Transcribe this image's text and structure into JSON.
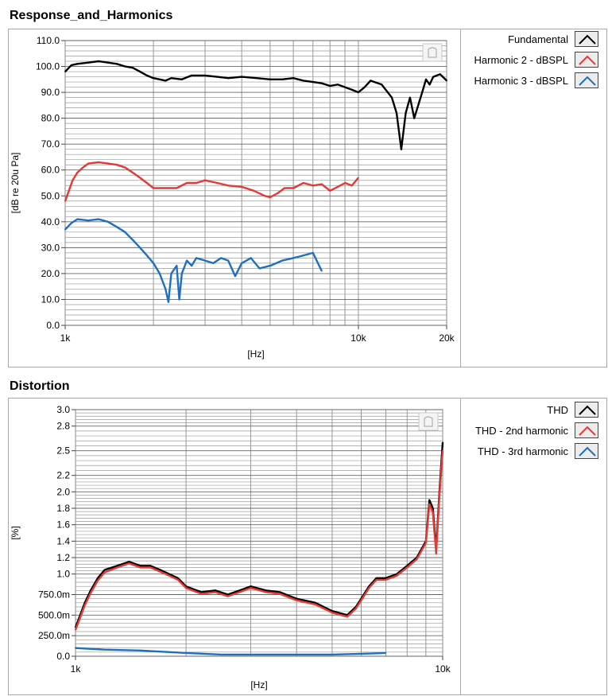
{
  "charts": {
    "response": {
      "panel_title": "Response_and_Harmonics",
      "chart_data": {
        "type": "line",
        "xscale": "log",
        "xlim": [
          1000,
          20000
        ],
        "ylim": [
          0,
          110
        ],
        "xlabel": "[Hz]",
        "ylabel": "[dB re 20u Pa]",
        "xticks": [
          1000,
          10000,
          20000
        ],
        "xtick_labels": [
          "1k",
          "10k",
          "20k"
        ],
        "yticks": [
          0,
          10,
          20,
          30,
          40,
          50,
          60,
          70,
          80,
          90,
          100,
          110
        ],
        "ytick_labels": [
          "0.0",
          "10.0",
          "20.0",
          "30.0",
          "40.0",
          "50.0",
          "60.0",
          "70.0",
          "80.0",
          "90.0",
          "100.0",
          "110.0"
        ],
        "grid": true,
        "legend_position": "right",
        "series": [
          {
            "name": "Fundamental",
            "color": "#000000",
            "x": [
              1000,
              1050,
              1100,
              1200,
              1300,
              1400,
              1500,
              1600,
              1700,
              1800,
              1900,
              2000,
              2100,
              2200,
              2300,
              2500,
              2700,
              3000,
              3300,
              3600,
              4000,
              4500,
              5000,
              5500,
              6000,
              6500,
              7000,
              7500,
              8000,
              8500,
              9000,
              9500,
              10000,
              10500,
              11000,
              12000,
              13000,
              13500,
              14000,
              14500,
              15000,
              15500,
              16000,
              16500,
              17000,
              17500,
              18000,
              19000,
              20000
            ],
            "y": [
              98,
              100.5,
              101,
              101.5,
              102,
              101.5,
              101,
              100,
              99.5,
              98,
              96.5,
              95.5,
              95,
              94.5,
              95.5,
              95,
              96.5,
              96.5,
              96,
              95.5,
              96,
              95.5,
              95,
              95,
              95.5,
              94.5,
              94,
              93.5,
              92.5,
              93,
              92,
              91,
              90,
              92,
              94.5,
              93,
              88,
              82,
              68,
              82,
              88,
              80,
              85,
              90,
              95,
              93,
              96,
              97,
              94.5
            ]
          },
          {
            "name": "Harmonic 2 - dBSPL",
            "color": "#e53935",
            "x": [
              1000,
              1030,
              1060,
              1100,
              1150,
              1200,
              1300,
              1400,
              1500,
              1600,
              1700,
              1800,
              1900,
              2000,
              2200,
              2400,
              2600,
              2800,
              3000,
              3300,
              3600,
              4000,
              4400,
              4800,
              5000,
              5300,
              5600,
              6000,
              6500,
              7000,
              7500,
              8000,
              8500,
              9000,
              9500,
              10000
            ],
            "y": [
              48,
              52,
              56,
              59,
              61,
              62.5,
              63,
              62.5,
              62,
              61,
              59,
              57,
              55,
              53,
              53,
              53,
              55,
              55,
              56,
              55,
              54,
              53.5,
              52,
              50,
              49.5,
              51,
              53,
              53,
              55,
              54,
              54.5,
              52,
              53.5,
              55,
              54,
              57
            ]
          },
          {
            "name": "Harmonic 3 - dBSPL",
            "color": "#1e6fc0",
            "x": [
              1000,
              1050,
              1100,
              1200,
              1300,
              1400,
              1500,
              1600,
              1700,
              1800,
              1900,
              2000,
              2100,
              2200,
              2250,
              2300,
              2400,
              2450,
              2500,
              2600,
              2700,
              2800,
              3000,
              3200,
              3400,
              3600,
              3800,
              4000,
              4300,
              4600,
              5000,
              5500,
              6000,
              6500,
              7000,
              7500
            ],
            "y": [
              37,
              39.5,
              41,
              40.5,
              41,
              40,
              38,
              36,
              33,
              30,
              27,
              24,
              20,
              14,
              9,
              20,
              23,
              10,
              20,
              25,
              23,
              26,
              25,
              24,
              26,
              25,
              19,
              24,
              26,
              22,
              23,
              25,
              26,
              27,
              28,
              21
            ]
          }
        ]
      }
    },
    "distortion": {
      "panel_title": "Distortion",
      "chart_data": {
        "type": "line",
        "xscale": "log",
        "xlim": [
          1000,
          10000
        ],
        "ylim": [
          0,
          3.0
        ],
        "xlabel": "[Hz]",
        "ylabel": "[%]",
        "xticks": [
          1000,
          10000
        ],
        "xtick_labels": [
          "1k",
          "10k"
        ],
        "yticks": [
          0,
          0.25,
          0.5,
          0.75,
          1.0,
          1.2,
          1.4,
          1.6,
          1.8,
          2.0,
          2.2,
          2.5,
          2.8,
          3.0
        ],
        "ytick_labels": [
          "0.0",
          "250.0m",
          "500.0m",
          "750.0m",
          "1.0",
          "1.2",
          "1.4",
          "1.6",
          "1.8",
          "2.0",
          "2.2",
          "2.5",
          "2.8",
          "3.0"
        ],
        "grid": true,
        "legend_position": "right",
        "series": [
          {
            "name": "THD",
            "color": "#000000",
            "x": [
              1000,
              1030,
              1060,
              1100,
              1150,
              1200,
              1300,
              1400,
              1500,
              1600,
              1700,
              1800,
              1900,
              2000,
              2200,
              2400,
              2600,
              2800,
              3000,
              3300,
              3600,
              4000,
              4500,
              5000,
              5500,
              5800,
              6000,
              6300,
              6600,
              7000,
              7500,
              8000,
              8500,
              9000,
              9200,
              9400,
              9600,
              9800,
              10000
            ],
            "y": [
              0.35,
              0.5,
              0.65,
              0.8,
              0.95,
              1.05,
              1.1,
              1.15,
              1.1,
              1.1,
              1.05,
              1.0,
              0.95,
              0.85,
              0.78,
              0.8,
              0.75,
              0.8,
              0.85,
              0.8,
              0.78,
              0.7,
              0.65,
              0.55,
              0.5,
              0.6,
              0.7,
              0.85,
              0.95,
              0.95,
              1.0,
              1.1,
              1.2,
              1.4,
              1.9,
              1.8,
              1.3,
              2.0,
              2.6
            ]
          },
          {
            "name": "THD - 2nd harmonic",
            "color": "#e53935",
            "x": [
              1000,
              1030,
              1060,
              1100,
              1150,
              1200,
              1300,
              1400,
              1500,
              1600,
              1700,
              1800,
              1900,
              2000,
              2200,
              2400,
              2600,
              2800,
              3000,
              3300,
              3600,
              4000,
              4500,
              5000,
              5500,
              5800,
              6000,
              6300,
              6600,
              7000,
              7500,
              8000,
              8500,
              9000,
              9200,
              9400,
              9600,
              9800,
              10000
            ],
            "y": [
              0.32,
              0.47,
              0.62,
              0.77,
              0.92,
              1.02,
              1.08,
              1.13,
              1.08,
              1.08,
              1.03,
              0.98,
              0.93,
              0.83,
              0.76,
              0.78,
              0.73,
              0.78,
              0.83,
              0.78,
              0.76,
              0.68,
              0.63,
              0.53,
              0.48,
              0.58,
              0.68,
              0.83,
              0.93,
              0.93,
              0.98,
              1.08,
              1.18,
              1.38,
              1.85,
              1.75,
              1.25,
              1.95,
              2.5
            ]
          },
          {
            "name": "THD - 3rd harmonic",
            "color": "#1e6fc0",
            "x": [
              1000,
              1200,
              1500,
              2000,
              2500,
              3000,
              4000,
              5000,
              6000,
              7000
            ],
            "y": [
              0.1,
              0.08,
              0.07,
              0.04,
              0.02,
              0.02,
              0.02,
              0.02,
              0.03,
              0.04
            ]
          }
        ]
      }
    }
  }
}
